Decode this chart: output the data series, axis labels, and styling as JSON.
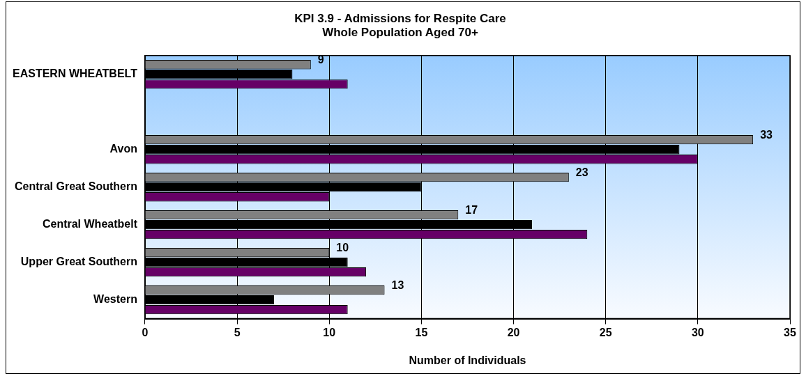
{
  "chart_data": {
    "type": "bar",
    "orientation": "horizontal",
    "title": "KPI 3.9 - Admissions for Respite Care\nWhole Population Aged 70+",
    "xlabel": "Number of Individuals",
    "categories": [
      "EASTERN WHEATBELT",
      null,
      "Avon",
      "Central Great Southern",
      "Central Wheatbelt",
      "Upper Great Southern",
      "Western"
    ],
    "series": [
      {
        "color": "#808080",
        "values": [
          9,
          null,
          33,
          23,
          17,
          10,
          13
        ],
        "value_labels": [
          "9",
          null,
          "33",
          "23",
          "17",
          "10",
          "13"
        ]
      },
      {
        "color": "#000000",
        "values": [
          8,
          null,
          29,
          15,
          21,
          11,
          7
        ]
      },
      {
        "color": "#660066",
        "values": [
          11,
          null,
          30,
          10,
          24,
          12,
          11
        ]
      }
    ],
    "xlim": [
      0,
      35
    ],
    "xticks": [
      0,
      5,
      10,
      15,
      20,
      25,
      30,
      35
    ],
    "grid": "x",
    "legend": false
  }
}
